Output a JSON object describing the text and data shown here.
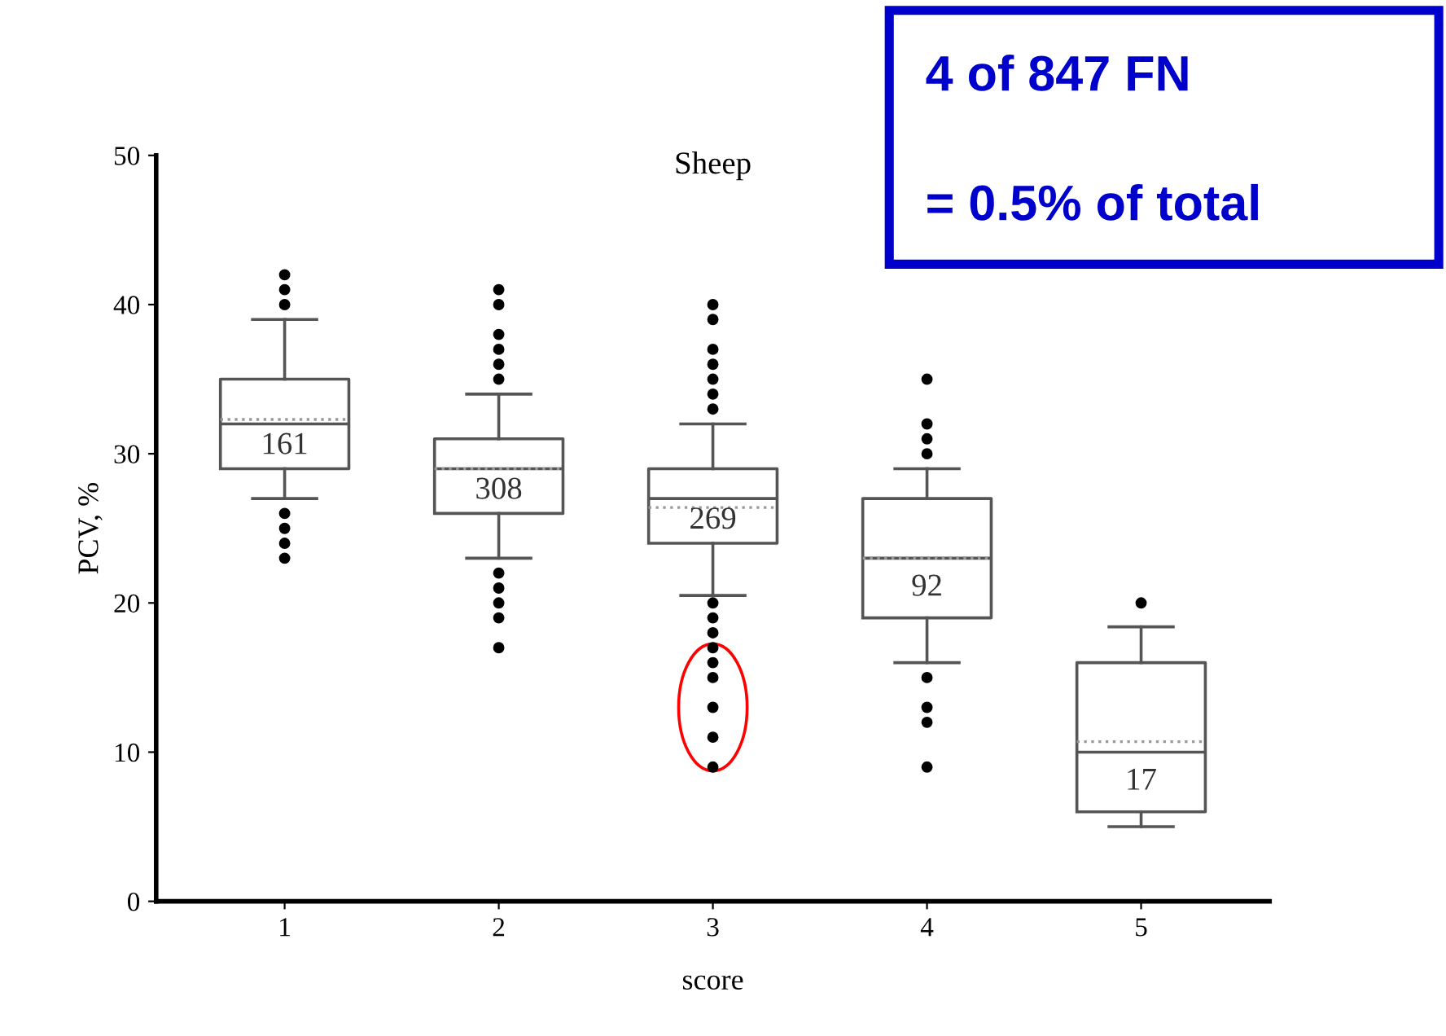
{
  "chart_data": {
    "type": "box",
    "title": "Sheep",
    "xlabel": "score",
    "ylabel": "PCV, %",
    "categories": [
      "1",
      "2",
      "3",
      "4",
      "5"
    ],
    "boxes": [
      {
        "low": 27,
        "q1": 29,
        "median": 32,
        "q3": 35,
        "high": 39,
        "mean": 32.3,
        "outliers": [
          42,
          41,
          40,
          26,
          25,
          24,
          23
        ]
      },
      {
        "low": 23,
        "q1": 26,
        "median": 29,
        "q3": 31,
        "high": 34,
        "mean": 29,
        "outliers": [
          41,
          40,
          38,
          37,
          36,
          35,
          22,
          21,
          20,
          19,
          17
        ]
      },
      {
        "low": 20.5,
        "q1": 24,
        "median": 27,
        "q3": 29,
        "high": 32,
        "mean": 26.4,
        "outliers": [
          40,
          39,
          37,
          36,
          35,
          34,
          33,
          20,
          19,
          18,
          17,
          16,
          15,
          13,
          11,
          9
        ]
      },
      {
        "low": 16,
        "q1": 19,
        "median": 23,
        "q3": 27,
        "high": 29,
        "mean": 23,
        "outliers": [
          35,
          32,
          31,
          30,
          15,
          13,
          12,
          9
        ]
      },
      {
        "low": 5,
        "q1": 6,
        "median": 10,
        "q3": 16,
        "high": 18.4,
        "mean": 10.7,
        "outliers": [
          20
        ]
      }
    ],
    "color": "#555555",
    "ylim": [
      0,
      50
    ],
    "yticks": [
      0,
      10,
      20,
      30,
      40,
      50
    ],
    "grid": false,
    "marker": "circle",
    "annotations": [
      "161",
      "308",
      "269",
      "92",
      "17",
      "4 of 847 FN",
      "= 0.5% of total"
    ]
  }
}
